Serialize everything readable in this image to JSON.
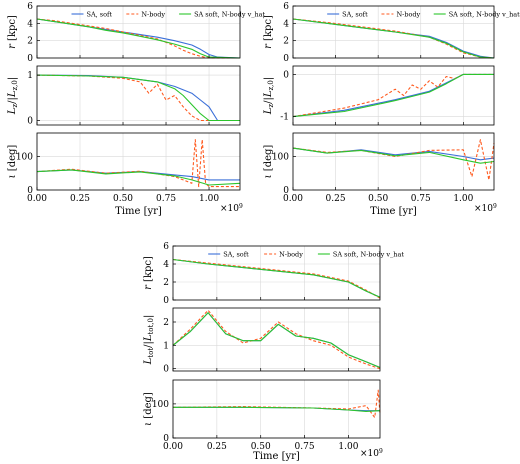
{
  "figure": {
    "legend_labels": [
      "SA, soft",
      "N-body",
      "SA soft, N-body v_hat"
    ],
    "x_label": "Time [yr]",
    "x_exponent": "×10^9",
    "colors": {
      "sa_soft": "#3b6fd8",
      "nbody": "#ff5a1f",
      "sa_nbody_vhat": "#2cc52c"
    }
  },
  "chart_data": [
    {
      "id": "top-left",
      "type": "line",
      "panels": [
        {
          "ylabel": "r [kpc]",
          "yticks": [
            0,
            2,
            4,
            6
          ],
          "ylim": [
            0,
            6
          ],
          "series": [
            {
              "name": "SA, soft",
              "color": "#3b6fd8",
              "style": "solid",
              "x": [
                0.0,
                0.1,
                0.2,
                0.3,
                0.4,
                0.5,
                0.6,
                0.7,
                0.8,
                0.9,
                0.95,
                1.0,
                1.05,
                1.2
              ],
              "y": [
                4.5,
                4.2,
                3.9,
                3.6,
                3.3,
                3.0,
                2.7,
                2.4,
                2.0,
                1.5,
                1.0,
                0.4,
                0.1,
                0.0
              ]
            },
            {
              "name": "N-body",
              "color": "#ff5a1f",
              "style": "dashed",
              "x": [
                0.0,
                0.1,
                0.2,
                0.3,
                0.4,
                0.5,
                0.6,
                0.7,
                0.8,
                0.85,
                0.9,
                0.95,
                1.0,
                1.2
              ],
              "y": [
                4.5,
                4.3,
                4.0,
                3.7,
                3.4,
                3.0,
                2.6,
                2.2,
                1.4,
                0.9,
                0.5,
                0.2,
                0.0,
                0.0
              ]
            },
            {
              "name": "SA soft, N-body v_hat",
              "color": "#2cc52c",
              "style": "solid",
              "x": [
                0.0,
                0.1,
                0.2,
                0.3,
                0.4,
                0.5,
                0.6,
                0.7,
                0.8,
                0.9,
                0.95,
                1.0,
                1.2
              ],
              "y": [
                4.5,
                4.2,
                3.9,
                3.6,
                3.2,
                2.9,
                2.5,
                2.1,
                1.6,
                1.0,
                0.5,
                0.1,
                0.0
              ]
            }
          ]
        },
        {
          "ylabel": "L_z/|L_z,0|",
          "yticks": [
            0,
            1
          ],
          "ylim": [
            -0.1,
            1.2
          ],
          "series": [
            {
              "name": "SA, soft",
              "color": "#3b6fd8",
              "style": "solid",
              "x": [
                0.0,
                0.3,
                0.5,
                0.7,
                0.8,
                0.9,
                0.95,
                1.0,
                1.05,
                1.2
              ],
              "y": [
                1.0,
                0.99,
                0.95,
                0.85,
                0.75,
                0.6,
                0.45,
                0.3,
                0.0,
                0.0
              ]
            },
            {
              "name": "N-body",
              "color": "#ff5a1f",
              "style": "dashed",
              "x": [
                0.0,
                0.3,
                0.5,
                0.6,
                0.65,
                0.7,
                0.75,
                0.8,
                0.85,
                0.9,
                0.95,
                1.0,
                1.2
              ],
              "y": [
                1.0,
                0.98,
                0.93,
                0.85,
                0.6,
                0.8,
                0.45,
                0.55,
                0.3,
                0.1,
                0.0,
                0.0,
                0.0
              ]
            },
            {
              "name": "SA soft, N-body v_hat",
              "color": "#2cc52c",
              "style": "solid",
              "x": [
                0.0,
                0.3,
                0.5,
                0.7,
                0.8,
                0.85,
                0.9,
                0.95,
                1.0,
                1.2
              ],
              "y": [
                1.0,
                0.98,
                0.95,
                0.85,
                0.7,
                0.55,
                0.35,
                0.15,
                0.0,
                0.0
              ]
            }
          ]
        },
        {
          "ylabel": "ι [deg]",
          "yticks": [
            0,
            100
          ],
          "ylim": [
            0,
            170
          ],
          "series": [
            {
              "name": "SA, soft",
              "color": "#3b6fd8",
              "style": "solid",
              "x": [
                0.0,
                0.2,
                0.4,
                0.6,
                0.8,
                0.9,
                1.0,
                1.2
              ],
              "y": [
                55,
                60,
                50,
                55,
                45,
                40,
                30,
                30
              ]
            },
            {
              "name": "N-body",
              "color": "#ff5a1f",
              "style": "dashed",
              "x": [
                0.0,
                0.2,
                0.4,
                0.6,
                0.8,
                0.85,
                0.9,
                0.92,
                0.94,
                0.96,
                0.98,
                1.0,
                1.2
              ],
              "y": [
                55,
                62,
                50,
                56,
                40,
                30,
                20,
                150,
                10,
                150,
                20,
                10,
                10
              ]
            },
            {
              "name": "SA soft, N-body v_hat",
              "color": "#2cc52c",
              "style": "solid",
              "x": [
                0.0,
                0.2,
                0.4,
                0.6,
                0.8,
                0.9,
                1.0,
                1.2
              ],
              "y": [
                55,
                60,
                48,
                54,
                42,
                30,
                15,
                20
              ]
            }
          ]
        }
      ],
      "xlim": [
        0,
        1.18
      ],
      "xticks": [
        "0.00",
        "0.25",
        "0.50",
        "0.75",
        "1.00"
      ],
      "xlabel": "Time [yr]"
    },
    {
      "id": "top-right",
      "type": "line",
      "panels": [
        {
          "ylabel": "r [kpc]",
          "yticks": [
            0,
            2,
            4,
            6
          ],
          "ylim": [
            0,
            6
          ],
          "series": [
            {
              "name": "SA, soft",
              "color": "#3b6fd8",
              "style": "solid",
              "x": [
                0.0,
                0.2,
                0.4,
                0.6,
                0.8,
                0.9,
                1.0,
                1.1,
                1.2
              ],
              "y": [
                4.5,
                4.0,
                3.5,
                3.0,
                2.5,
                1.8,
                0.8,
                0.2,
                0.0
              ]
            },
            {
              "name": "N-body",
              "color": "#ff5a1f",
              "style": "dashed",
              "x": [
                0.0,
                0.2,
                0.4,
                0.6,
                0.8,
                0.9,
                1.0,
                1.1,
                1.2
              ],
              "y": [
                4.5,
                4.1,
                3.6,
                3.1,
                2.4,
                1.6,
                0.6,
                0.1,
                0.0
              ]
            },
            {
              "name": "SA soft, N-body v_hat",
              "color": "#2cc52c",
              "style": "solid",
              "x": [
                0.0,
                0.2,
                0.4,
                0.6,
                0.8,
                0.9,
                1.0,
                1.1,
                1.2
              ],
              "y": [
                4.5,
                4.0,
                3.5,
                3.0,
                2.4,
                1.7,
                0.7,
                0.1,
                0.0
              ]
            }
          ]
        },
        {
          "ylabel": "L_z/|L_z,0|",
          "yticks": [
            -1,
            0
          ],
          "ylim": [
            -1.2,
            0.2
          ],
          "series": [
            {
              "name": "SA, soft",
              "color": "#3b6fd8",
              "style": "solid",
              "x": [
                0.0,
                0.3,
                0.6,
                0.8,
                0.9,
                1.0,
                1.2
              ],
              "y": [
                -1.0,
                -0.85,
                -0.6,
                -0.4,
                -0.2,
                0.0,
                0.0
              ]
            },
            {
              "name": "N-body",
              "color": "#ff5a1f",
              "style": "dashed",
              "x": [
                0.0,
                0.3,
                0.5,
                0.6,
                0.65,
                0.7,
                0.75,
                0.8,
                0.85,
                0.9,
                0.95,
                1.0,
                1.2
              ],
              "y": [
                -1.0,
                -0.8,
                -0.6,
                -0.35,
                -0.5,
                -0.25,
                -0.35,
                -0.15,
                -0.3,
                -0.05,
                -0.1,
                0.0,
                0.0
              ]
            },
            {
              "name": "SA soft, N-body v_hat",
              "color": "#2cc52c",
              "style": "solid",
              "x": [
                0.0,
                0.3,
                0.6,
                0.8,
                0.9,
                1.0,
                1.2
              ],
              "y": [
                -1.0,
                -0.88,
                -0.62,
                -0.42,
                -0.22,
                0.0,
                0.0
              ]
            }
          ]
        },
        {
          "ylabel": "ι [deg]",
          "yticks": [
            0,
            100
          ],
          "ylim": [
            0,
            170
          ],
          "series": [
            {
              "name": "SA, soft",
              "color": "#3b6fd8",
              "style": "solid",
              "x": [
                0.0,
                0.2,
                0.4,
                0.6,
                0.8,
                1.0,
                1.1,
                1.2
              ],
              "y": [
                125,
                110,
                120,
                105,
                115,
                100,
                90,
                95
              ]
            },
            {
              "name": "N-body",
              "color": "#ff5a1f",
              "style": "dashed",
              "x": [
                0.0,
                0.2,
                0.4,
                0.6,
                0.8,
                1.0,
                1.05,
                1.1,
                1.15,
                1.2
              ],
              "y": [
                125,
                112,
                118,
                100,
                118,
                120,
                40,
                150,
                30,
                140
              ]
            },
            {
              "name": "SA soft, N-body v_hat",
              "color": "#2cc52c",
              "style": "solid",
              "x": [
                0.0,
                0.2,
                0.4,
                0.6,
                0.8,
                1.0,
                1.1,
                1.2
              ],
              "y": [
                125,
                110,
                118,
                102,
                112,
                90,
                80,
                85
              ]
            }
          ]
        }
      ],
      "xlim": [
        0,
        1.18
      ],
      "xticks": [
        "0.00",
        "0.25",
        "0.50",
        "0.75",
        "1.00"
      ],
      "xlabel": "Time [yr]"
    },
    {
      "id": "bottom",
      "type": "line",
      "panels": [
        {
          "ylabel": "r [kpc]",
          "yticks": [
            0,
            2,
            4,
            6
          ],
          "ylim": [
            0,
            6
          ],
          "series": [
            {
              "name": "SA, soft",
              "color": "#3b6fd8",
              "style": "solid",
              "x": [
                0.0,
                0.2,
                0.4,
                0.6,
                0.8,
                1.0,
                1.1,
                1.2
              ],
              "y": [
                4.5,
                4.0,
                3.6,
                3.2,
                2.8,
                2.0,
                1.0,
                0.3
              ]
            },
            {
              "name": "N-body",
              "color": "#ff5a1f",
              "style": "dashed",
              "x": [
                0.0,
                0.2,
                0.4,
                0.6,
                0.8,
                1.0,
                1.1,
                1.2
              ],
              "y": [
                4.5,
                4.1,
                3.7,
                3.3,
                2.9,
                2.1,
                1.1,
                0.2
              ]
            },
            {
              "name": "SA soft, N-body v_hat",
              "color": "#2cc52c",
              "style": "solid",
              "x": [
                0.0,
                0.2,
                0.4,
                0.6,
                0.8,
                1.0,
                1.1,
                1.2
              ],
              "y": [
                4.5,
                4.0,
                3.6,
                3.2,
                2.8,
                2.0,
                1.0,
                0.3
              ]
            }
          ]
        },
        {
          "ylabel": "L_tot/|L_tot,0|",
          "yticks": [
            0,
            1,
            2
          ],
          "ylim": [
            -0.1,
            2.6
          ],
          "series": [
            {
              "name": "SA, soft",
              "color": "#3b6fd8",
              "style": "solid",
              "x": [
                0.0,
                0.1,
                0.2,
                0.3,
                0.4,
                0.5,
                0.6,
                0.7,
                0.8,
                0.9,
                1.0,
                1.1,
                1.2
              ],
              "y": [
                1.0,
                1.6,
                2.4,
                1.5,
                1.2,
                1.2,
                1.9,
                1.4,
                1.3,
                1.1,
                0.6,
                0.3,
                0.05
              ]
            },
            {
              "name": "N-body",
              "color": "#ff5a1f",
              "style": "dashed",
              "x": [
                0.0,
                0.1,
                0.2,
                0.3,
                0.4,
                0.5,
                0.6,
                0.7,
                0.8,
                0.9,
                1.0,
                1.1,
                1.2
              ],
              "y": [
                1.0,
                1.7,
                2.5,
                1.6,
                1.1,
                1.3,
                2.0,
                1.5,
                1.2,
                1.0,
                0.5,
                0.2,
                0.0
              ]
            },
            {
              "name": "SA soft, N-body v_hat",
              "color": "#2cc52c",
              "style": "solid",
              "x": [
                0.0,
                0.1,
                0.2,
                0.3,
                0.4,
                0.5,
                0.6,
                0.7,
                0.8,
                0.9,
                1.0,
                1.1,
                1.2
              ],
              "y": [
                1.0,
                1.6,
                2.4,
                1.5,
                1.2,
                1.2,
                1.9,
                1.4,
                1.3,
                1.1,
                0.6,
                0.3,
                0.05
              ]
            }
          ]
        },
        {
          "ylabel": "ι [deg]",
          "yticks": [
            0,
            100
          ],
          "ylim": [
            0,
            170
          ],
          "series": [
            {
              "name": "SA, soft",
              "color": "#3b6fd8",
              "style": "solid",
              "x": [
                0.0,
                0.4,
                0.8,
                1.0,
                1.1,
                1.2
              ],
              "y": [
                90,
                90,
                88,
                82,
                80,
                80
              ]
            },
            {
              "name": "N-body",
              "color": "#ff5a1f",
              "style": "dashed",
              "x": [
                0.0,
                0.4,
                0.8,
                1.0,
                1.1,
                1.15,
                1.17,
                1.19
              ],
              "y": [
                90,
                92,
                88,
                85,
                95,
                60,
                140,
                70
              ]
            },
            {
              "name": "SA soft, N-body v_hat",
              "color": "#2cc52c",
              "style": "solid",
              "x": [
                0.0,
                0.4,
                0.8,
                1.0,
                1.1,
                1.2
              ],
              "y": [
                90,
                90,
                88,
                82,
                78,
                80
              ]
            }
          ]
        }
      ],
      "xlim": [
        0,
        1.18
      ],
      "xticks": [
        "0.00",
        "0.25",
        "0.50",
        "0.75",
        "1.00"
      ],
      "xlabel": "Time [yr]"
    }
  ]
}
